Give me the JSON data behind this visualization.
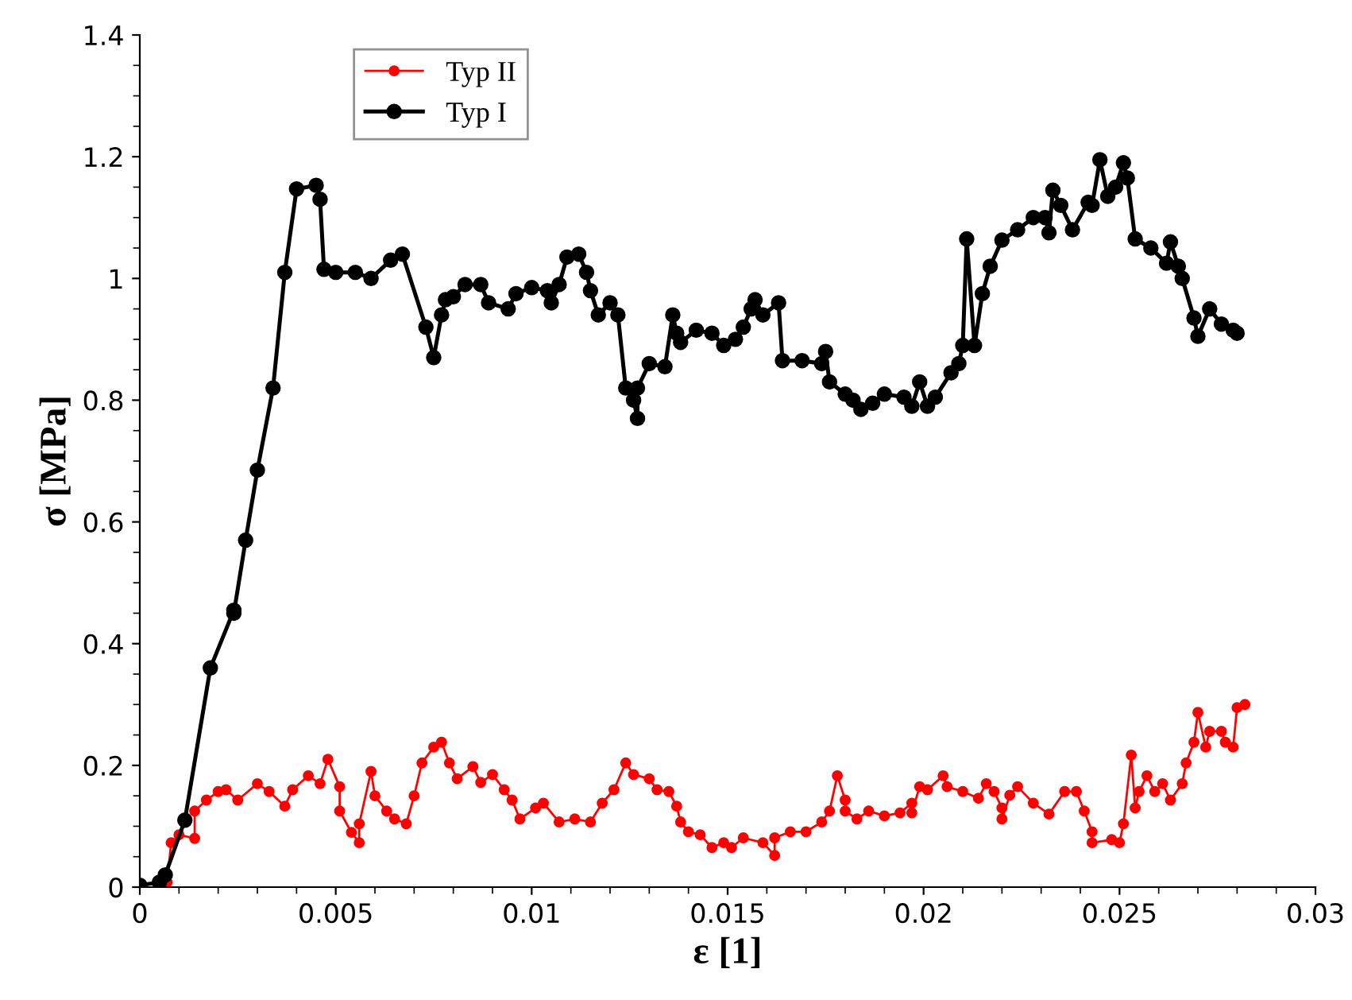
{
  "chart_data": {
    "type": "line",
    "xlabel": "ε [1]",
    "ylabel": "σ [MPa]",
    "xlim": [
      0,
      0.03
    ],
    "ylim": [
      0,
      1.4
    ],
    "xticks": [
      0,
      0.005,
      0.01,
      0.015,
      0.02,
      0.025,
      0.03
    ],
    "yticks": [
      0,
      0.2,
      0.4,
      0.6,
      0.8,
      1,
      1.2,
      1.4
    ],
    "grid": false,
    "legend": "top left",
    "marker": "circle",
    "line_style": "solid",
    "series": [
      {
        "name": "Typ II",
        "color": "#ff0000",
        "x": [
          0,
          0.0007,
          0.0008,
          0.001,
          0.0014,
          0.0014,
          0.0017,
          0.002,
          0.0022,
          0.0025,
          0.003,
          0.0033,
          0.0037,
          0.0039,
          0.0043,
          0.0046,
          0.0048,
          0.0051,
          0.0051,
          0.0054,
          0.0056,
          0.0056,
          0.0059,
          0.006,
          0.0063,
          0.0065,
          0.0068,
          0.007,
          0.0072,
          0.0075,
          0.0077,
          0.0079,
          0.0081,
          0.0085,
          0.0087,
          0.009,
          0.0093,
          0.0095,
          0.0097,
          0.0101,
          0.0103,
          0.0107,
          0.0111,
          0.0115,
          0.0118,
          0.0121,
          0.0124,
          0.0126,
          0.013,
          0.0132,
          0.0135,
          0.0137,
          0.0138,
          0.014,
          0.0143,
          0.0146,
          0.0149,
          0.0151,
          0.0154,
          0.0159,
          0.0162,
          0.0162,
          0.0166,
          0.017,
          0.0174,
          0.0176,
          0.0178,
          0.018,
          0.018,
          0.0183,
          0.0186,
          0.019,
          0.0194,
          0.0197,
          0.0197,
          0.0199,
          0.0201,
          0.0205,
          0.0206,
          0.021,
          0.0214,
          0.0216,
          0.0218,
          0.022,
          0.022,
          0.0222,
          0.0224,
          0.0228,
          0.0232,
          0.0236,
          0.0239,
          0.0241,
          0.0243,
          0.0243,
          0.0248,
          0.025,
          0.0251,
          0.0253,
          0.0254,
          0.0255,
          0.0257,
          0.0259,
          0.0261,
          0.0263,
          0.0266,
          0.0267,
          0.0269,
          0.027,
          0.0272,
          0.0273,
          0.0276,
          0.0277,
          0.0279,
          0.028,
          0.0282
        ],
        "values": [
          0.003,
          0.008,
          0.073,
          0.086,
          0.08,
          0.125,
          0.143,
          0.157,
          0.16,
          0.143,
          0.17,
          0.157,
          0.133,
          0.16,
          0.183,
          0.17,
          0.21,
          0.165,
          0.125,
          0.09,
          0.073,
          0.104,
          0.19,
          0.15,
          0.125,
          0.112,
          0.104,
          0.15,
          0.204,
          0.23,
          0.238,
          0.204,
          0.178,
          0.198,
          0.172,
          0.185,
          0.16,
          0.143,
          0.112,
          0.13,
          0.138,
          0.107,
          0.112,
          0.107,
          0.138,
          0.16,
          0.204,
          0.185,
          0.178,
          0.16,
          0.157,
          0.133,
          0.107,
          0.091,
          0.086,
          0.065,
          0.073,
          0.065,
          0.081,
          0.073,
          0.052,
          0.081,
          0.091,
          0.091,
          0.107,
          0.125,
          0.183,
          0.143,
          0.125,
          0.112,
          0.125,
          0.117,
          0.122,
          0.138,
          0.122,
          0.165,
          0.16,
          0.183,
          0.165,
          0.157,
          0.146,
          0.17,
          0.157,
          0.13,
          0.112,
          0.151,
          0.165,
          0.138,
          0.12,
          0.157,
          0.157,
          0.125,
          0.091,
          0.073,
          0.078,
          0.073,
          0.104,
          0.217,
          0.13,
          0.157,
          0.183,
          0.157,
          0.17,
          0.143,
          0.17,
          0.204,
          0.238,
          0.287,
          0.23,
          0.256,
          0.256,
          0.238,
          0.23,
          0.295,
          0.3
        ]
      },
      {
        "name": "Typ I",
        "color": "#000000",
        "x": [
          0,
          0.0005,
          0.00065,
          0.00115,
          0.0018,
          0.0024,
          0.0024,
          0.0027,
          0.003,
          0.0034,
          0.0037,
          0.004,
          0.0045,
          0.0046,
          0.0047,
          0.005,
          0.0055,
          0.0059,
          0.0064,
          0.0067,
          0.0073,
          0.0075,
          0.0077,
          0.0078,
          0.008,
          0.0083,
          0.0087,
          0.0089,
          0.0094,
          0.0096,
          0.01,
          0.0104,
          0.0105,
          0.0107,
          0.0109,
          0.0112,
          0.0114,
          0.0115,
          0.0117,
          0.012,
          0.0122,
          0.0124,
          0.0126,
          0.0127,
          0.0127,
          0.013,
          0.0134,
          0.0136,
          0.0137,
          0.0138,
          0.0142,
          0.0146,
          0.0149,
          0.0152,
          0.0154,
          0.0156,
          0.0157,
          0.0159,
          0.0163,
          0.0164,
          0.0169,
          0.0174,
          0.0175,
          0.0176,
          0.018,
          0.0182,
          0.0184,
          0.0187,
          0.019,
          0.0195,
          0.0197,
          0.0199,
          0.0201,
          0.0203,
          0.0207,
          0.0209,
          0.021,
          0.0211,
          0.0213,
          0.0215,
          0.0217,
          0.022,
          0.0224,
          0.0228,
          0.0231,
          0.0232,
          0.0233,
          0.0235,
          0.0238,
          0.0242,
          0.0243,
          0.0245,
          0.0247,
          0.0249,
          0.0251,
          0.0252,
          0.0254,
          0.0258,
          0.0262,
          0.0263,
          0.0265,
          0.0266,
          0.0269,
          0.027,
          0.0273,
          0.0276,
          0.0279,
          0.028
        ],
        "values": [
          0.003,
          0.008,
          0.02,
          0.11,
          0.36,
          0.455,
          0.45,
          0.57,
          0.685,
          0.82,
          1.01,
          1.147,
          1.153,
          1.13,
          1.015,
          1.01,
          1.01,
          1.0,
          1.03,
          1.04,
          0.92,
          0.87,
          0.94,
          0.965,
          0.97,
          0.99,
          0.99,
          0.96,
          0.95,
          0.975,
          0.985,
          0.98,
          0.96,
          0.99,
          1.035,
          1.04,
          1.01,
          0.98,
          0.94,
          0.96,
          0.94,
          0.82,
          0.8,
          0.77,
          0.82,
          0.86,
          0.855,
          0.94,
          0.91,
          0.895,
          0.915,
          0.91,
          0.89,
          0.9,
          0.92,
          0.95,
          0.965,
          0.94,
          0.96,
          0.865,
          0.865,
          0.86,
          0.88,
          0.83,
          0.81,
          0.8,
          0.785,
          0.795,
          0.81,
          0.805,
          0.79,
          0.83,
          0.79,
          0.805,
          0.845,
          0.86,
          0.89,
          1.065,
          0.89,
          0.975,
          1.02,
          1.063,
          1.08,
          1.1,
          1.1,
          1.075,
          1.145,
          1.12,
          1.08,
          1.125,
          1.12,
          1.195,
          1.135,
          1.15,
          1.19,
          1.165,
          1.065,
          1.05,
          1.025,
          1.06,
          1.02,
          1.0,
          0.935,
          0.905,
          0.95,
          0.925,
          0.915,
          0.91
        ]
      }
    ]
  }
}
